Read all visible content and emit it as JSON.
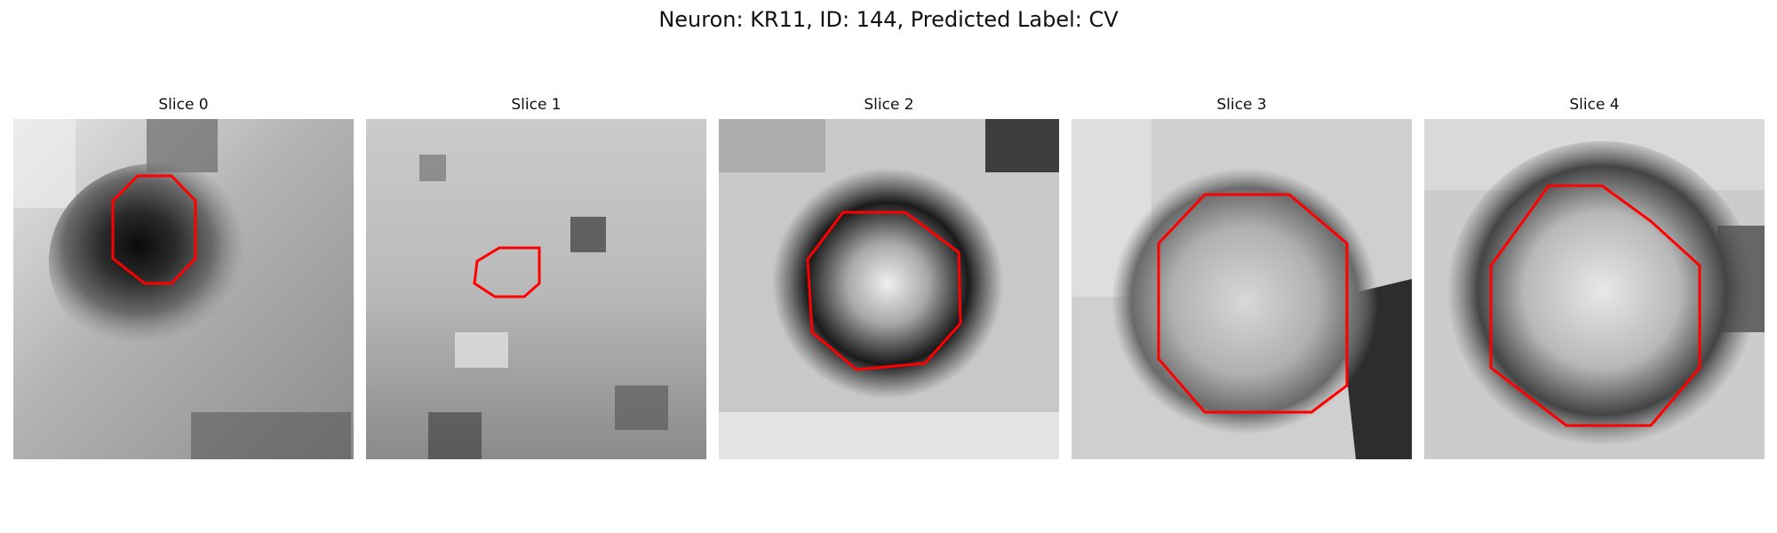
{
  "figure": {
    "title": "Neuron: KR11, ID: 144, Predicted Label: CV"
  },
  "panels": [
    {
      "title": "Slice 0"
    },
    {
      "title": "Slice 1"
    },
    {
      "title": "Slice 2"
    },
    {
      "title": "Slice 3"
    },
    {
      "title": "Slice 4"
    }
  ],
  "colors": {
    "contour": "#ff0000",
    "background": "#ffffff"
  }
}
